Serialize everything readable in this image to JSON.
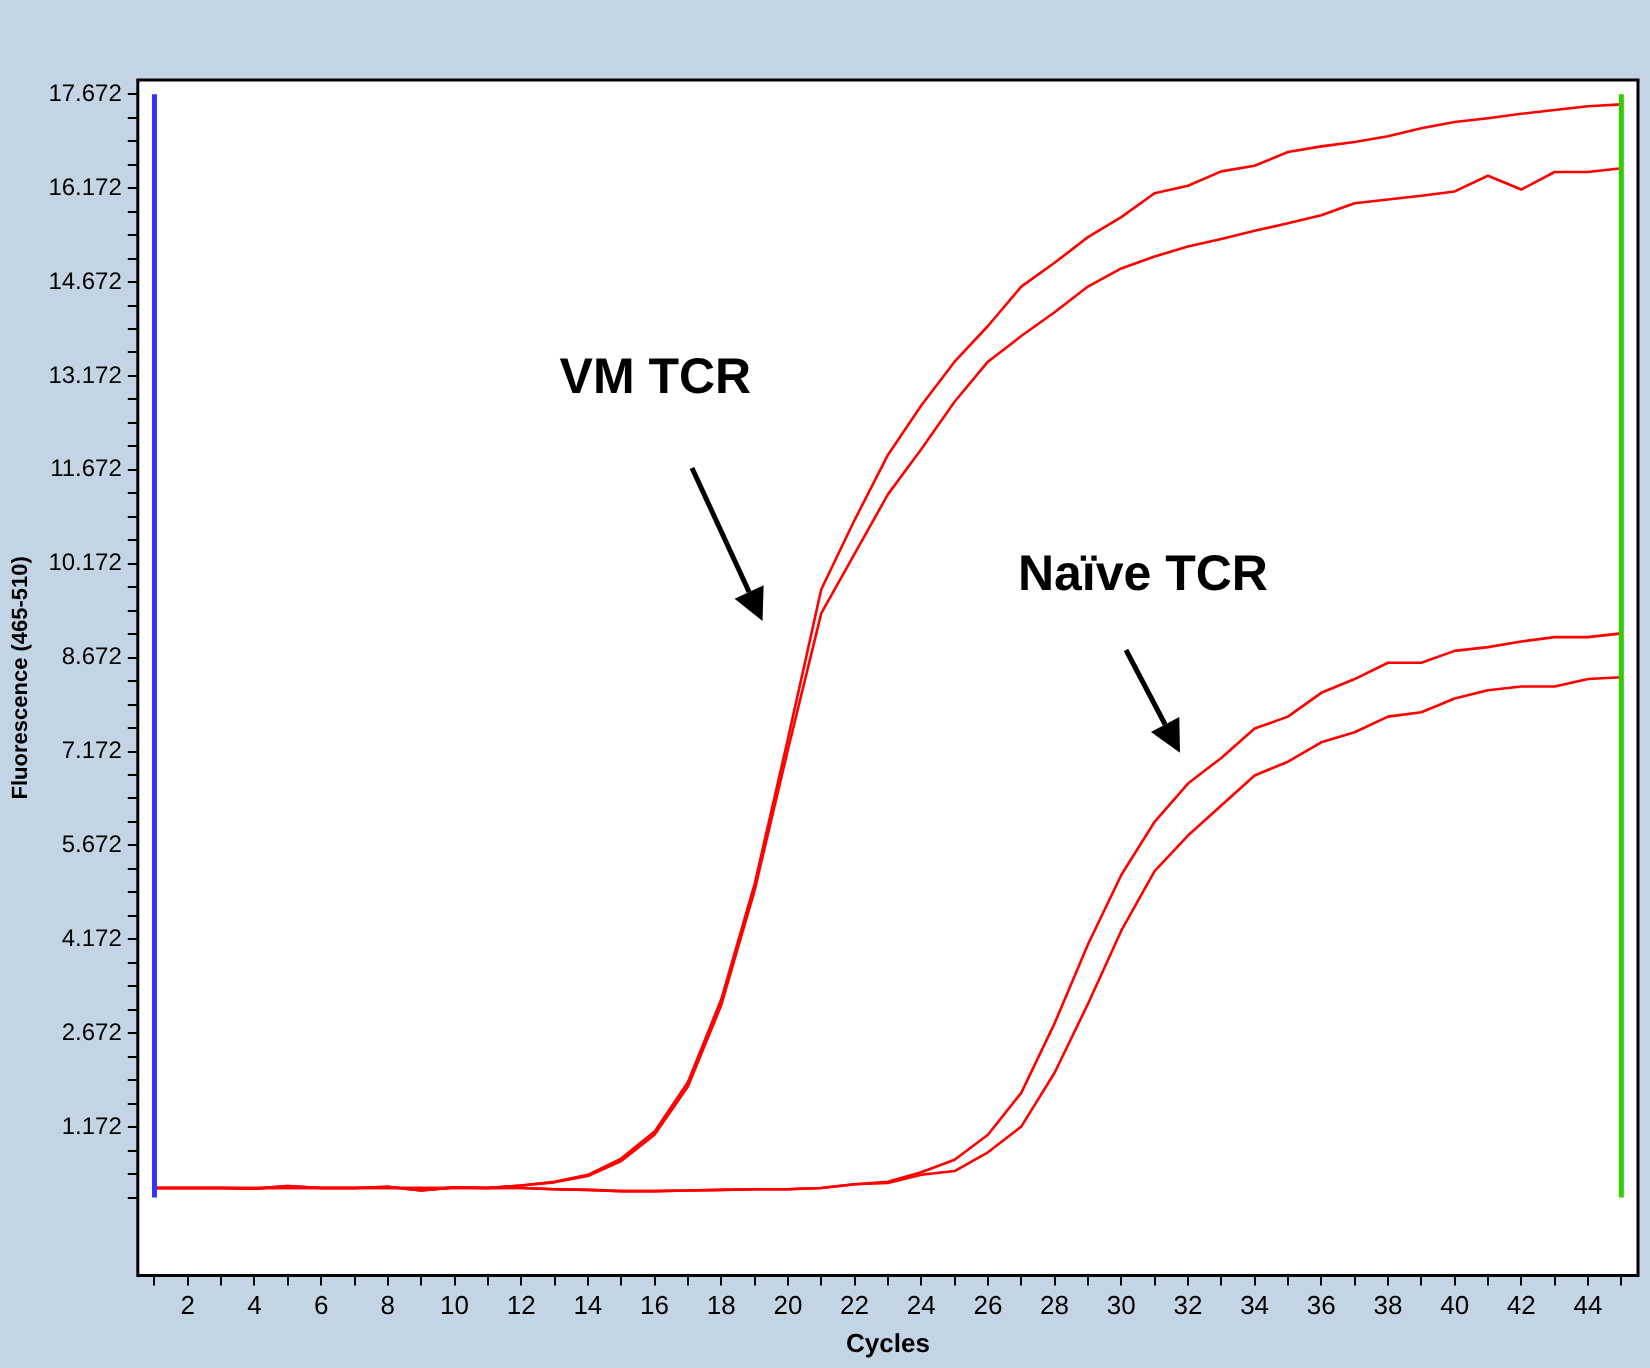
{
  "chart_data": {
    "type": "line",
    "xlabel": "Cycles",
    "ylabel": "Fluorescence (465-510)",
    "x": [
      1,
      2,
      3,
      4,
      5,
      6,
      7,
      8,
      9,
      10,
      11,
      12,
      13,
      14,
      15,
      16,
      17,
      18,
      19,
      20,
      21,
      22,
      23,
      24,
      25,
      26,
      27,
      28,
      29,
      30,
      31,
      32,
      33,
      34,
      35,
      36,
      37,
      38,
      39,
      40,
      41,
      42,
      43,
      44,
      45
    ],
    "series": [
      {
        "color": "#ff0000",
        "values": [
          0.2,
          0.2,
          0.2,
          0.19,
          0.23,
          0.2,
          0.2,
          0.22,
          0.16,
          0.21,
          0.2,
          0.24,
          0.3,
          0.41,
          0.67,
          1.1,
          1.89,
          3.21,
          5.05,
          7.37,
          9.76,
          10.87,
          11.91,
          12.7,
          13.4,
          13.97,
          14.6,
          14.98,
          15.39,
          15.71,
          16.09,
          16.21,
          16.44,
          16.53,
          16.75,
          16.84,
          16.91,
          17.0,
          17.13,
          17.23,
          17.29,
          17.36,
          17.42,
          17.48,
          17.51
        ]
      },
      {
        "color": "#ff0000",
        "values": [
          0.2,
          0.2,
          0.2,
          0.19,
          0.23,
          0.2,
          0.2,
          0.22,
          0.16,
          0.21,
          0.2,
          0.24,
          0.29,
          0.39,
          0.63,
          1.05,
          1.82,
          3.12,
          4.95,
          7.2,
          9.38,
          10.33,
          11.28,
          12.0,
          12.76,
          13.4,
          13.81,
          14.19,
          14.6,
          14.89,
          15.08,
          15.24,
          15.36,
          15.49,
          15.61,
          15.74,
          15.93,
          15.99,
          16.05,
          16.12,
          16.37,
          16.15,
          16.43,
          16.43,
          16.49
        ]
      },
      {
        "color": "#ff0000",
        "values": [
          0.2,
          0.2,
          0.2,
          0.2,
          0.2,
          0.2,
          0.2,
          0.2,
          0.2,
          0.2,
          0.2,
          0.2,
          0.18,
          0.17,
          0.15,
          0.15,
          0.16,
          0.17,
          0.18,
          0.18,
          0.2,
          0.26,
          0.3,
          0.45,
          0.65,
          1.05,
          1.72,
          2.83,
          4.09,
          5.2,
          6.05,
          6.66,
          7.07,
          7.54,
          7.73,
          8.11,
          8.33,
          8.59,
          8.59,
          8.78,
          8.84,
          8.93,
          9.0,
          9.0,
          9.06
        ]
      },
      {
        "color": "#ff0000",
        "values": [
          0.2,
          0.2,
          0.2,
          0.2,
          0.2,
          0.2,
          0.2,
          0.2,
          0.2,
          0.2,
          0.2,
          0.2,
          0.18,
          0.17,
          0.15,
          0.15,
          0.16,
          0.17,
          0.18,
          0.18,
          0.2,
          0.26,
          0.28,
          0.41,
          0.47,
          0.77,
          1.18,
          2.04,
          3.14,
          4.31,
          5.26,
          5.83,
          6.31,
          6.79,
          7.01,
          7.32,
          7.48,
          7.73,
          7.8,
          8.02,
          8.15,
          8.21,
          8.21,
          8.33,
          8.36
        ]
      }
    ],
    "xlim": [
      0.5,
      45.5
    ],
    "ylim": [
      -1.2,
      17.9
    ],
    "xticks": [
      {
        "value": 1,
        "label": null
      },
      2,
      {
        "value": 3,
        "label": null
      },
      4,
      {
        "value": 5,
        "label": null
      },
      6,
      {
        "value": 7,
        "label": null
      },
      8,
      {
        "value": 9,
        "label": null
      },
      10,
      {
        "value": 11,
        "label": null
      },
      12,
      {
        "value": 13,
        "label": null
      },
      14,
      {
        "value": 15,
        "label": null
      },
      16,
      {
        "value": 17,
        "label": null
      },
      18,
      {
        "value": 19,
        "label": null
      },
      20,
      {
        "value": 21,
        "label": null
      },
      22,
      {
        "value": 23,
        "label": null
      },
      24,
      {
        "value": 25,
        "label": null
      },
      26,
      {
        "value": 27,
        "label": null
      },
      28,
      {
        "value": 29,
        "label": null
      },
      30,
      {
        "value": 31,
        "label": null
      },
      32,
      {
        "value": 33,
        "label": null
      },
      34,
      {
        "value": 35,
        "label": null
      },
      36,
      {
        "value": 37,
        "label": null
      },
      38,
      {
        "value": 39,
        "label": null
      },
      40,
      {
        "value": 41,
        "label": null
      },
      42,
      {
        "value": 43,
        "label": null
      },
      44,
      {
        "value": 45,
        "label": null
      }
    ],
    "yticks": [
      {
        "value": 0.047,
        "label": null
      },
      {
        "value": 0.422,
        "label": null
      },
      {
        "value": 0.797,
        "label": null
      },
      1.172,
      {
        "value": 1.547,
        "label": null
      },
      {
        "value": 1.922,
        "label": null
      },
      {
        "value": 2.297,
        "label": null
      },
      2.672,
      {
        "value": 3.047,
        "label": null
      },
      {
        "value": 3.422,
        "label": null
      },
      {
        "value": 3.797,
        "label": null
      },
      4.172,
      {
        "value": 4.547,
        "label": null
      },
      {
        "value": 4.922,
        "label": null
      },
      {
        "value": 5.297,
        "label": null
      },
      5.672,
      {
        "value": 6.047,
        "label": null
      },
      {
        "value": 6.422,
        "label": null
      },
      {
        "value": 6.797,
        "label": null
      },
      7.172,
      {
        "value": 7.547,
        "label": null
      },
      {
        "value": 7.922,
        "label": null
      },
      {
        "value": 8.297,
        "label": null
      },
      8.672,
      {
        "value": 9.047,
        "label": null
      },
      {
        "value": 9.422,
        "label": null
      },
      {
        "value": 9.797,
        "label": null
      },
      10.172,
      {
        "value": 10.547,
        "label": null
      },
      {
        "value": 10.922,
        "label": null
      },
      {
        "value": 11.297,
        "label": null
      },
      11.672,
      {
        "value": 12.047,
        "label": null
      },
      {
        "value": 12.422,
        "label": null
      },
      {
        "value": 12.797,
        "label": null
      },
      13.172,
      {
        "value": 13.547,
        "label": null
      },
      {
        "value": 13.922,
        "label": null
      },
      {
        "value": 14.297,
        "label": null
      },
      14.672,
      {
        "value": 15.047,
        "label": null
      },
      {
        "value": 15.422,
        "label": null
      },
      {
        "value": 15.797,
        "label": null
      },
      16.172,
      {
        "value": 16.547,
        "label": null
      },
      {
        "value": 16.922,
        "label": null
      },
      {
        "value": 17.297,
        "label": null
      },
      17.672
    ],
    "ref_lines": [
      {
        "axis": "x",
        "value": 1,
        "color": "#3333ff"
      },
      {
        "axis": "x",
        "value": 45,
        "color": "#33cc00"
      }
    ],
    "annotations": [
      "VM TCR",
      "Naïve TCR"
    ],
    "grid": false,
    "legend": false,
    "marker": "none",
    "line_style": "solid"
  }
}
